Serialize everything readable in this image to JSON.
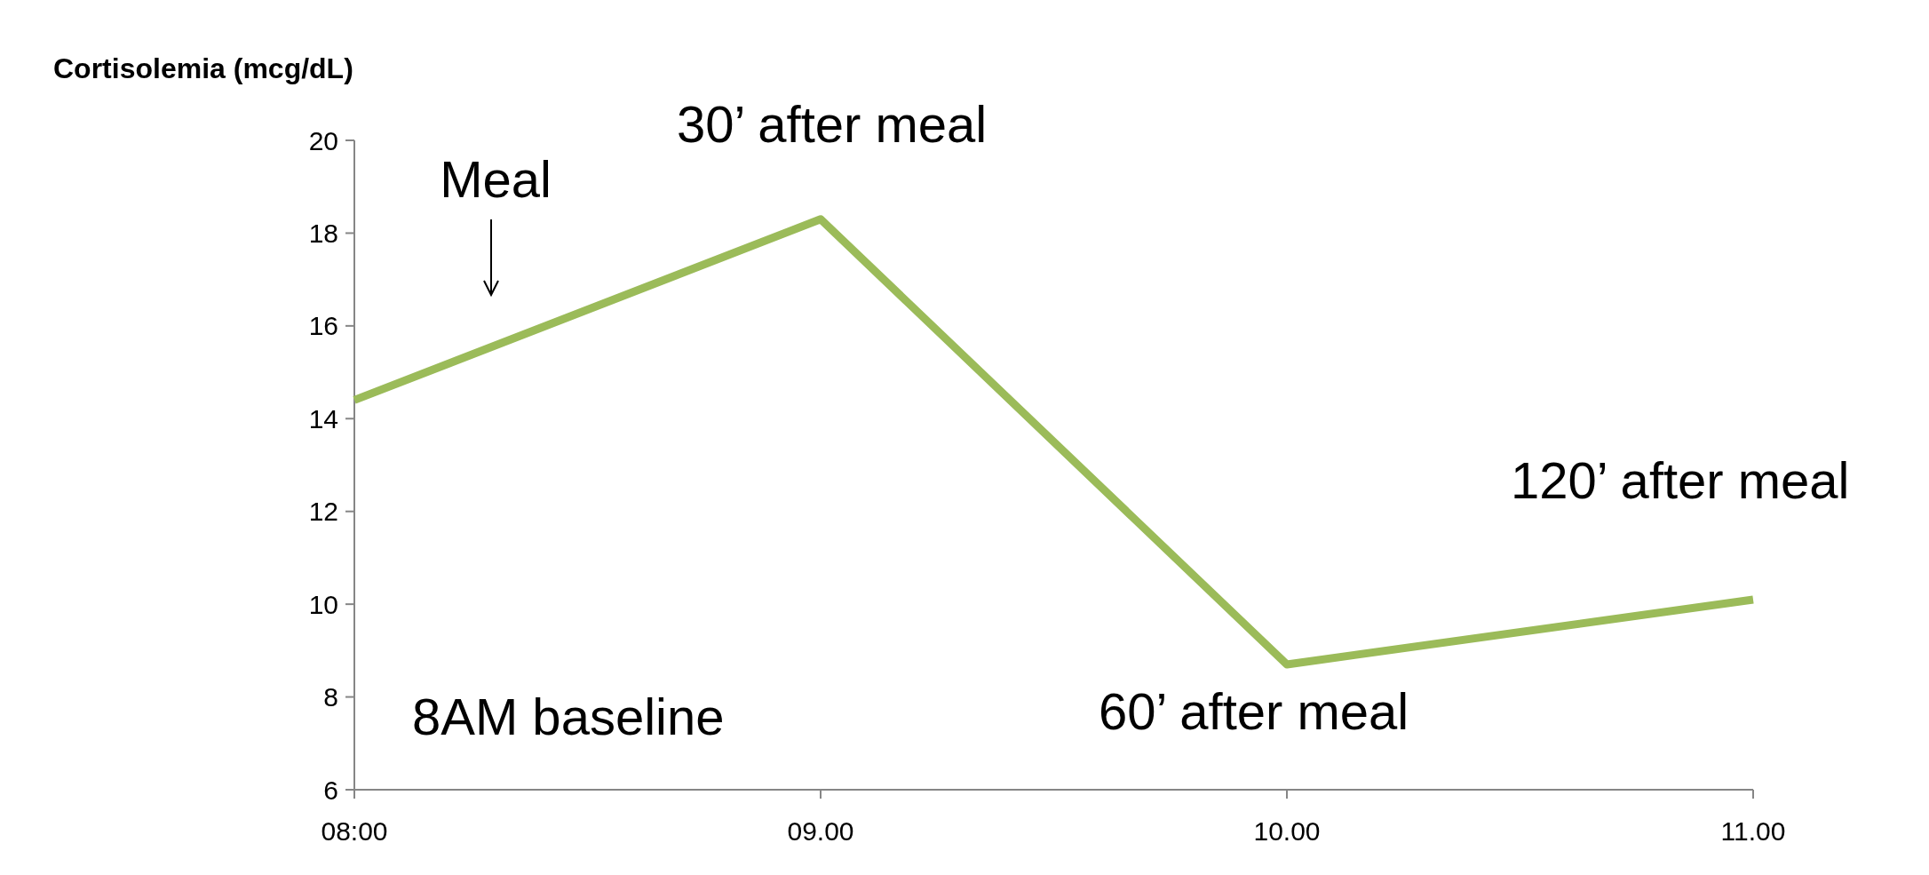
{
  "chart_data": {
    "type": "line",
    "ylabel": "Cortisolemia (mcg/dL)",
    "categories": [
      "08:00",
      "09.00",
      "10.00",
      "11.00"
    ],
    "series": [
      {
        "color": "#9bbb59",
        "values": [
          14.4,
          18.3,
          8.7,
          10.1
        ]
      }
    ],
    "ylim": [
      6,
      20
    ],
    "yticks": [
      6,
      8,
      10,
      12,
      14,
      16,
      18,
      20
    ],
    "grid": false,
    "marker": "none",
    "line_style": "solid",
    "annotations": [
      "Meal",
      "30’ after meal",
      "8AM baseline",
      "60’ after meal",
      "120’ after meal"
    ]
  }
}
